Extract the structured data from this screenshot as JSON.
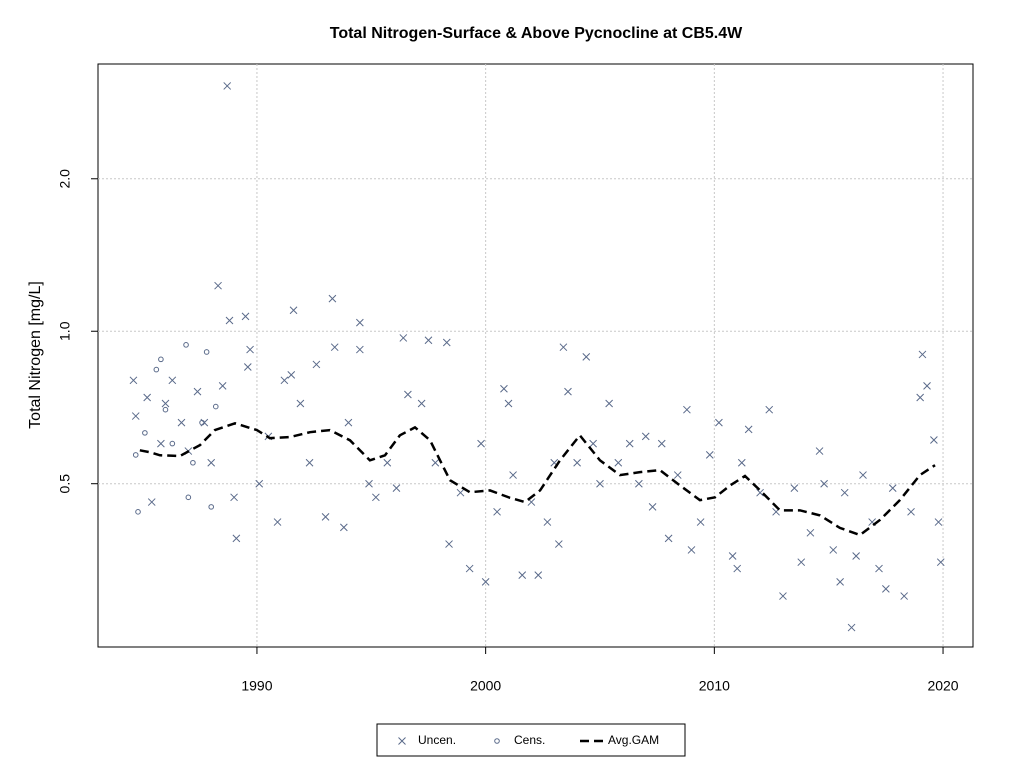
{
  "chart_data": {
    "type": "scatter",
    "title": "Total Nitrogen-Surface & Above Pycnocline at CB5.4W",
    "y_label": "Total Nitrogen [mg/L]",
    "xlim": [
      1983.05,
      2021.31
    ],
    "xticks": [
      1990,
      2000,
      2010,
      2020
    ],
    "ylim": [
      0.238,
      3.37
    ],
    "ylog": true,
    "yticks": [
      0.5,
      {
        "value": 1,
        "label": "1.0"
      },
      {
        "value": 2,
        "label": "2.0"
      }
    ],
    "grid": true,
    "legend": "bottom",
    "series": [
      {
        "name": "Uncen.",
        "marker": "x",
        "color": "#5a6a8a",
        "x": [
          1984.6,
          1984.7,
          1985.2,
          1985.4,
          1985.8,
          1986.0,
          1986.3,
          1986.7,
          1987.0,
          1987.4,
          1987.7,
          1988.0,
          1988.3,
          1988.5,
          1988.7,
          1988.8,
          1989.0,
          1989.1,
          1989.5,
          1989.6,
          1989.7,
          1990.1,
          1990.5,
          1990.9,
          1991.2,
          1991.5,
          1991.6,
          1991.9,
          1992.3,
          1992.6,
          1993.0,
          1993.3,
          1993.4,
          1993.8,
          1994.0,
          1994.5,
          1994.5,
          1994.9,
          1995.2,
          1995.7,
          1996.1,
          1996.4,
          1996.6,
          1997.2,
          1997.5,
          1997.8,
          1998.3,
          1998.4,
          1998.9,
          1999.3,
          1999.8,
          2000.0,
          2000.5,
          2000.8,
          2001.0,
          2001.2,
          2001.6,
          2002.0,
          2002.3,
          2002.7,
          2003.0,
          2003.2,
          2003.4,
          2003.6,
          2004.0,
          2004.4,
          2004.7,
          2005.0,
          2005.4,
          2005.8,
          2006.3,
          2006.7,
          2007.0,
          2007.3,
          2007.7,
          2008.0,
          2008.4,
          2008.8,
          2009.0,
          2009.4,
          2009.8,
          2010.2,
          2010.8,
          2011.0,
          2011.2,
          2011.5,
          2012.0,
          2012.4,
          2012.7,
          2013.0,
          2013.5,
          2013.8,
          2014.2,
          2014.6,
          2014.8,
          2015.2,
          2015.5,
          2015.7,
          2016.0,
          2016.2,
          2016.5,
          2016.9,
          2017.2,
          2017.5,
          2017.8,
          2018.3,
          2018.6,
          2019.0,
          2019.1,
          2019.3,
          2019.6,
          2019.8,
          2019.9
        ],
        "values": [
          0.8,
          0.68,
          0.74,
          0.46,
          0.6,
          0.72,
          0.8,
          0.66,
          0.58,
          0.76,
          0.66,
          0.55,
          1.23,
          0.78,
          3.05,
          1.05,
          0.47,
          0.39,
          1.07,
          0.85,
          0.92,
          0.5,
          0.62,
          0.42,
          0.8,
          0.82,
          1.1,
          0.72,
          0.55,
          0.86,
          0.43,
          1.16,
          0.93,
          0.41,
          0.66,
          1.04,
          0.92,
          0.5,
          0.47,
          0.55,
          0.49,
          0.97,
          0.75,
          0.72,
          0.96,
          0.55,
          0.95,
          0.38,
          0.48,
          0.34,
          0.6,
          0.32,
          0.44,
          0.77,
          0.72,
          0.52,
          0.33,
          0.46,
          0.33,
          0.42,
          0.55,
          0.38,
          0.93,
          0.76,
          0.55,
          0.89,
          0.6,
          0.5,
          0.72,
          0.55,
          0.6,
          0.5,
          0.62,
          0.45,
          0.6,
          0.39,
          0.52,
          0.7,
          0.37,
          0.42,
          0.57,
          0.66,
          0.36,
          0.34,
          0.55,
          0.64,
          0.48,
          0.7,
          0.44,
          0.3,
          0.49,
          0.35,
          0.4,
          0.58,
          0.5,
          0.37,
          0.32,
          0.48,
          0.26,
          0.36,
          0.52,
          0.42,
          0.34,
          0.31,
          0.49,
          0.3,
          0.44,
          0.74,
          0.9,
          0.78,
          0.61,
          0.42,
          0.35
        ]
      },
      {
        "name": "Cens.",
        "marker": "o",
        "color": "#5a6a8a",
        "x": [
          1984.7,
          1984.8,
          1985.1,
          1985.6,
          1985.8,
          1986.0,
          1986.3,
          1986.9,
          1987.0,
          1987.2,
          1987.6,
          1987.8,
          1988.0,
          1988.2
        ],
        "values": [
          0.57,
          0.44,
          0.63,
          0.84,
          0.88,
          0.7,
          0.6,
          0.94,
          0.47,
          0.55,
          0.66,
          0.91,
          0.45,
          0.71
        ]
      },
      {
        "name": "Avg.GAM",
        "marker": "dashed-line",
        "color": "#000000",
        "x": [
          1984.88,
          1985.32,
          1985.76,
          1986.63,
          1987.51,
          1988.16,
          1989.04,
          1990.0,
          1990.57,
          1991.44,
          1992.32,
          1993.19,
          1994.07,
          1994.94,
          1995.6,
          1996.25,
          1996.91,
          1997.57,
          1998.44,
          1999.31,
          2000.19,
          2001.06,
          2001.72,
          2002.38,
          2003.25,
          2004.12,
          2005.0,
          2005.87,
          2006.75,
          2007.62,
          2008.5,
          2009.37,
          2010.03,
          2010.69,
          2011.34,
          2012.0,
          2012.87,
          2013.74,
          2014.62,
          2015.49,
          2016.37,
          2017.24,
          2018.11,
          2018.99,
          2019.65
        ],
        "values": [
          0.582,
          0.577,
          0.569,
          0.567,
          0.596,
          0.638,
          0.658,
          0.638,
          0.615,
          0.618,
          0.632,
          0.638,
          0.609,
          0.556,
          0.569,
          0.623,
          0.646,
          0.609,
          0.508,
          0.481,
          0.485,
          0.469,
          0.46,
          0.485,
          0.556,
          0.623,
          0.556,
          0.52,
          0.527,
          0.532,
          0.496,
          0.464,
          0.47,
          0.496,
          0.518,
          0.485,
          0.443,
          0.443,
          0.433,
          0.409,
          0.396,
          0.424,
          0.464,
          0.52,
          0.544
        ]
      }
    ]
  }
}
